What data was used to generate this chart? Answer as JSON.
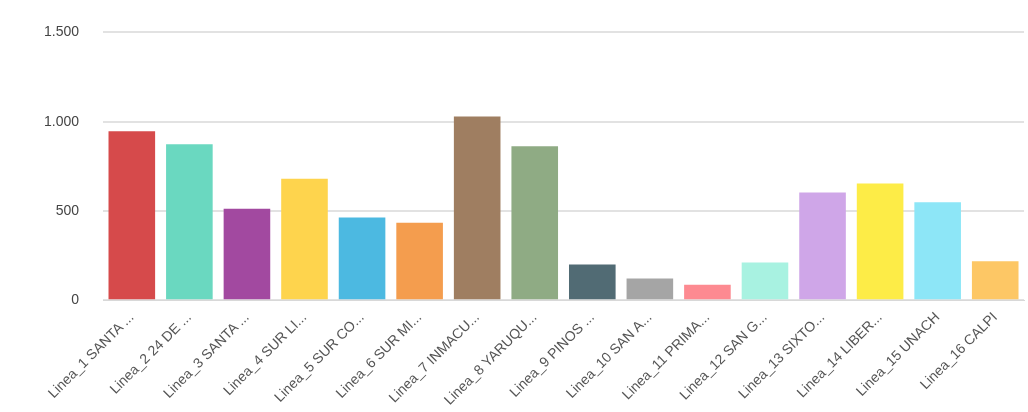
{
  "chart_data": {
    "type": "bar",
    "categories": [
      "Linea_1 SANTA ...",
      "Linea_2 24 DE ...",
      "Linea_3 SANTA ...",
      "Linea_4 SUR LI...",
      "Linea_5 SUR CO...",
      "Linea_6 SUR MI...",
      "Linea_7 INMACU...",
      "Linea_8 YARUQU...",
      "Linea_9 PINOS ...",
      "Linea_10 SAN A...",
      "Linea_11 PRIMA...",
      "Linea_12 SAN G...",
      "Linea_13 SIXTO...",
      "Linea_14 LIBER...",
      "Linea_15 UNACH",
      "Linea_16 CALPI"
    ],
    "values": [
      946,
      873,
      513,
      680,
      464,
      434,
      1029,
      862,
      200,
      122,
      87,
      212,
      603,
      654,
      549,
      219
    ],
    "colors": [
      "#d64a4b",
      "#6ad8c0",
      "#a249a0",
      "#fed44d",
      "#4cb9e1",
      "#f49d4e",
      "#9f7e61",
      "#8fab84",
      "#516b74",
      "#a5a5a5",
      "#fd8a91",
      "#a8f2e1",
      "#cfa6e8",
      "#fdec47",
      "#8de6f7",
      "#fdc765"
    ],
    "ylim": [
      0,
      1500
    ],
    "yticks": [
      0,
      500,
      {
        "value": 1000,
        "label": "1.000"
      },
      {
        "value": 1500,
        "label": "1.500"
      }
    ],
    "grid": "y"
  }
}
